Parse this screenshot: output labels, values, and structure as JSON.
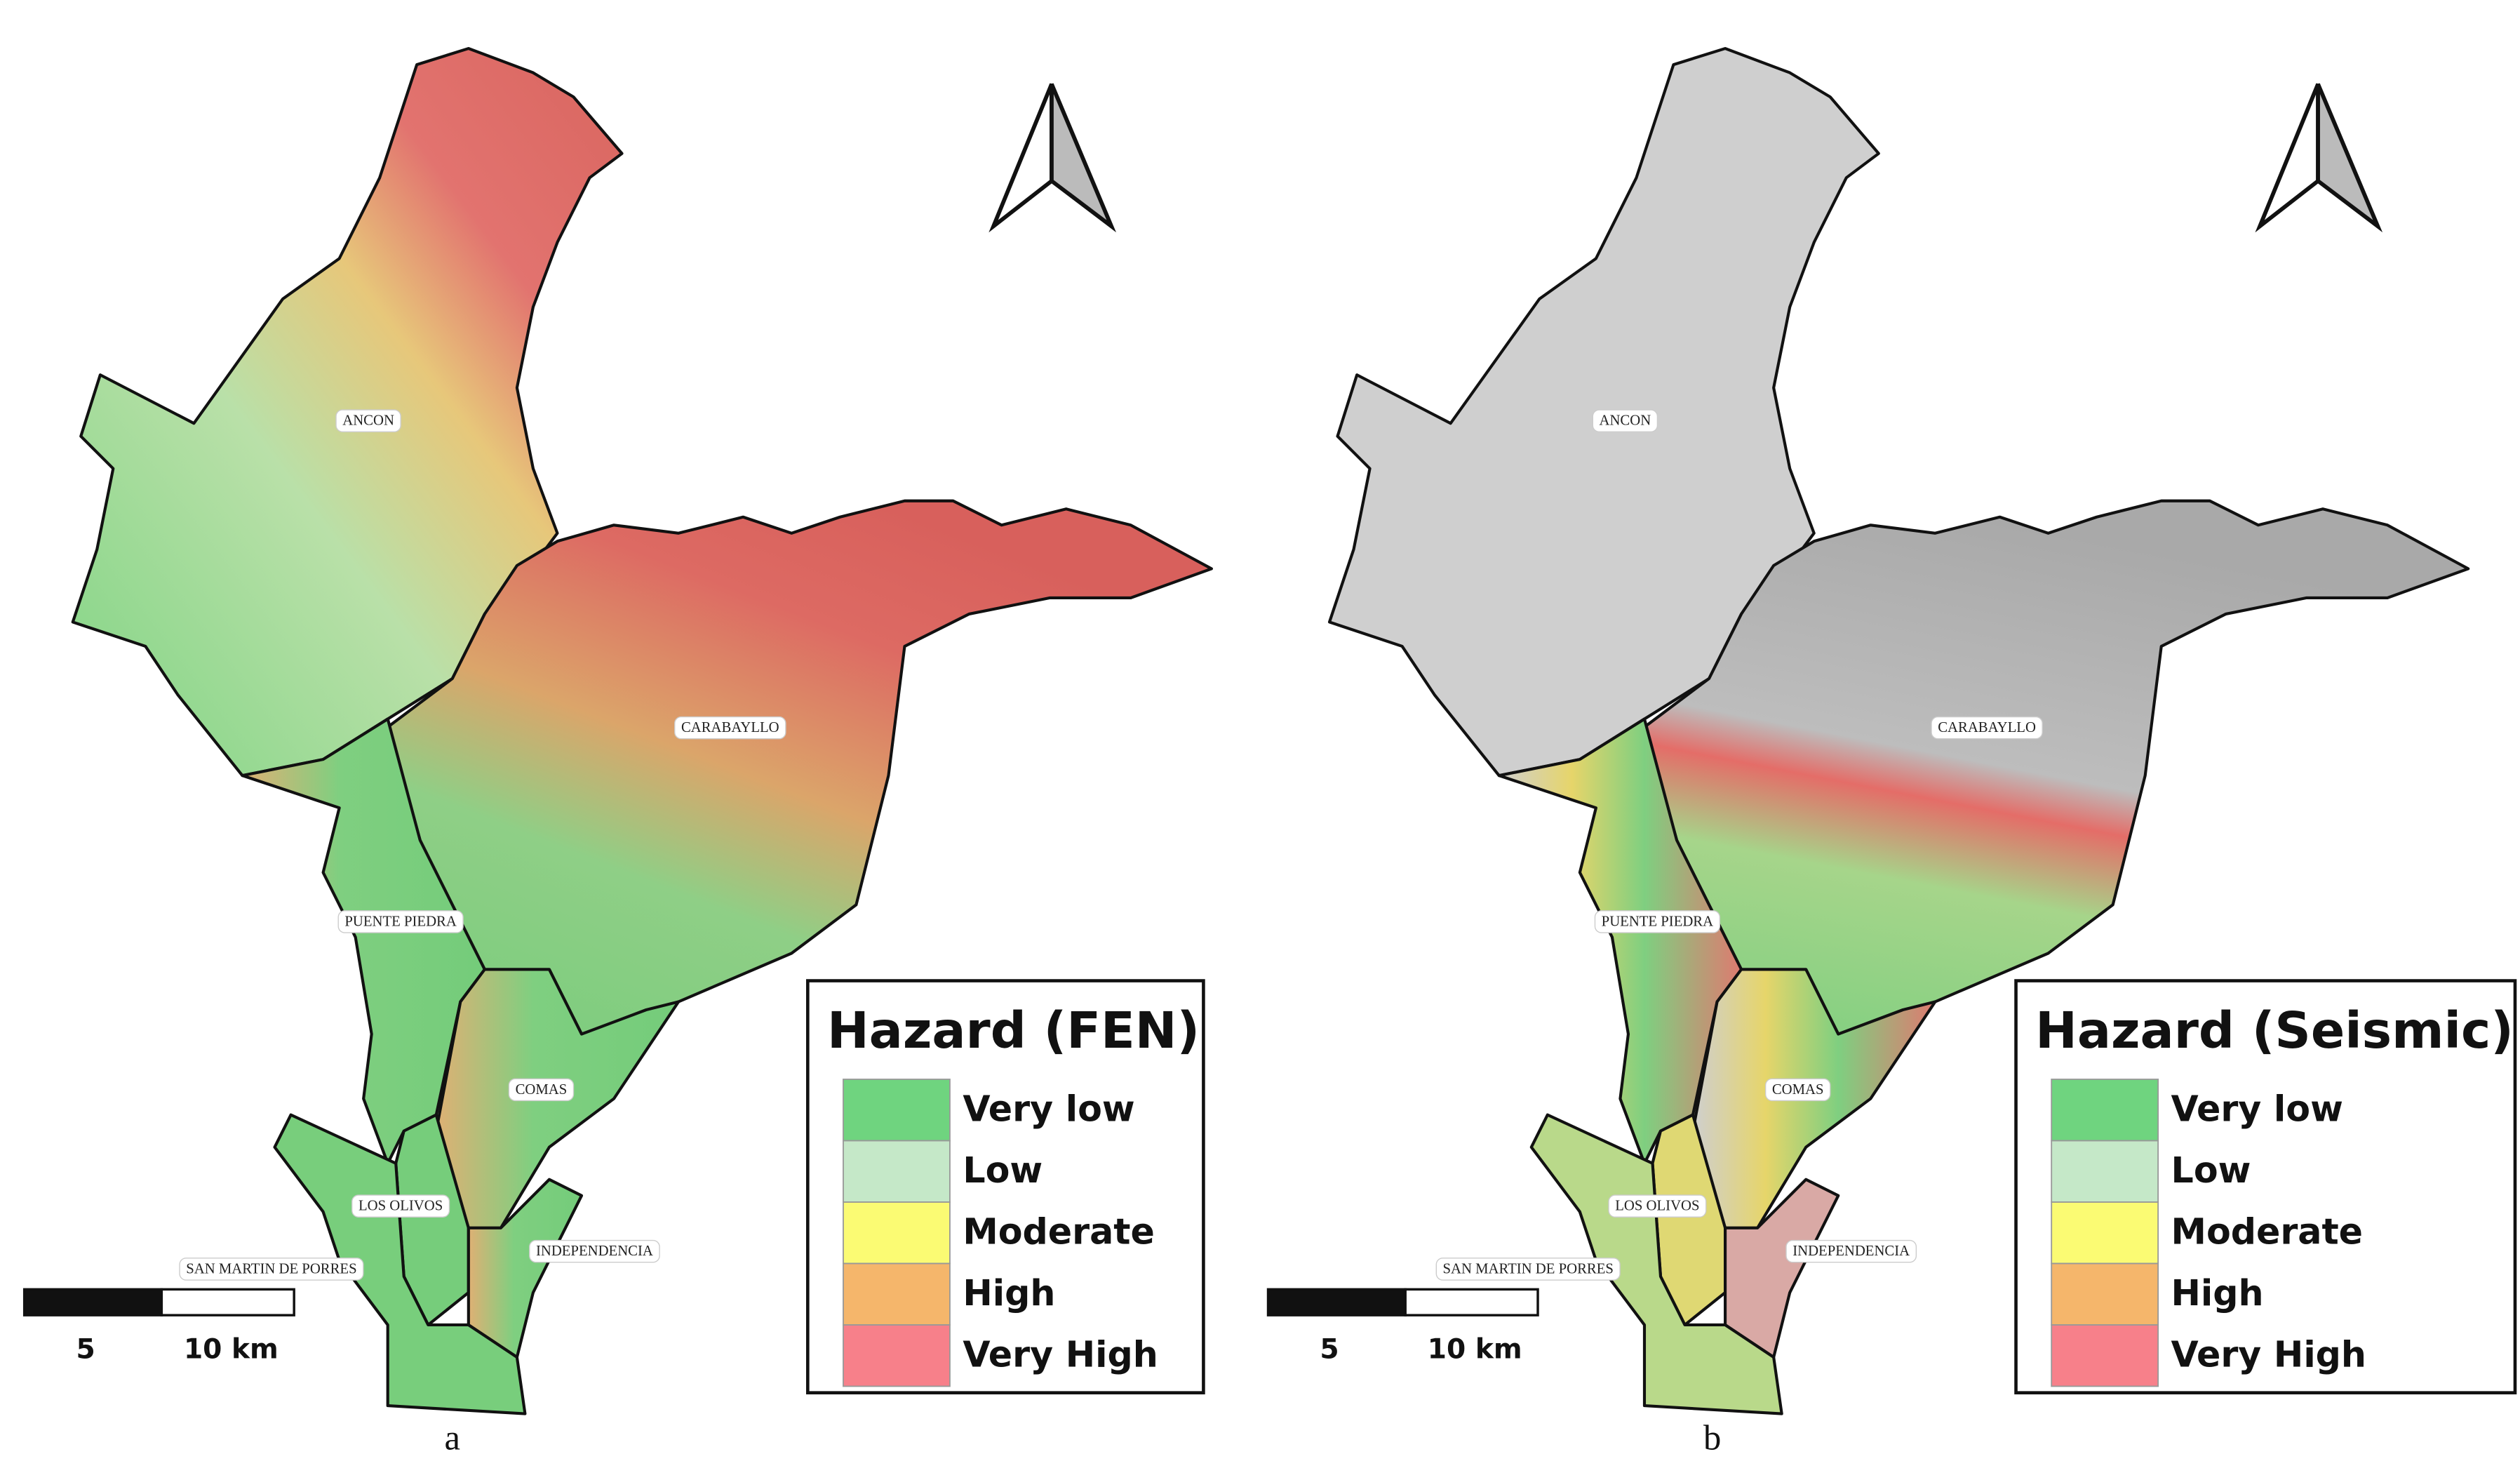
{
  "panels": [
    {
      "letter": "a",
      "districts": [
        "ANCON",
        "CARABAYLLO",
        "PUENTE PIEDRA",
        "COMAS",
        "LOS OLIVOS",
        "INDEPENDENCIA",
        "SAN MARTIN DE PORRES"
      ],
      "legend": {
        "title": "Hazard (FEN)",
        "classes": [
          {
            "label": "Very low",
            "color": "#6fd47f"
          },
          {
            "label": "Low",
            "color": "#c5e8c8"
          },
          {
            "label": "Moderate",
            "color": "#fbfb73"
          },
          {
            "label": "High",
            "color": "#f5b66b"
          },
          {
            "label": "Very High",
            "color": "#f7808a"
          }
        ]
      },
      "scale_bar": [
        "5",
        "10 km"
      ]
    },
    {
      "letter": "b",
      "districts": [
        "ANCON",
        "CARABAYLLO",
        "PUENTE PIEDRA",
        "COMAS",
        "LOS OLIVOS",
        "INDEPENDENCIA",
        "SAN MARTIN DE PORRES"
      ],
      "legend": {
        "title": "Hazard (Seismic)",
        "classes": [
          {
            "label": "Very low",
            "color": "#6fd47f"
          },
          {
            "label": "Low",
            "color": "#c5e8c8"
          },
          {
            "label": "Moderate",
            "color": "#fbfb73"
          },
          {
            "label": "High",
            "color": "#f5b66b"
          },
          {
            "label": "Very High",
            "color": "#f7808a"
          }
        ]
      },
      "scale_bar": [
        "5",
        "10 km"
      ]
    }
  ]
}
